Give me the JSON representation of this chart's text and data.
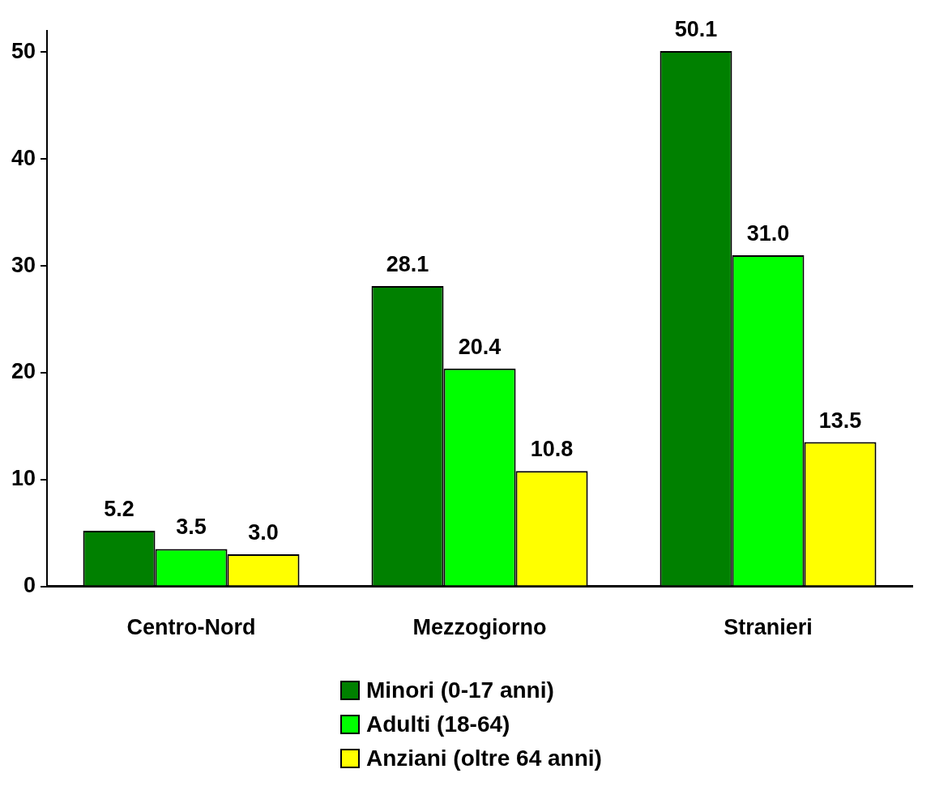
{
  "chart_data": {
    "type": "bar",
    "categories": [
      "Centro-Nord",
      "Mezzogiorno",
      "Stranieri"
    ],
    "series": [
      {
        "name": "Minori (0-17 anni)",
        "color": "#008000",
        "values": [
          5.2,
          28.1,
          50.1
        ]
      },
      {
        "name": "Adulti (18-64)",
        "color": "#00ff00",
        "values": [
          3.5,
          20.4,
          31.0
        ]
      },
      {
        "name": "Anziani (oltre 64 anni)",
        "color": "#ffff00",
        "values": [
          3.0,
          10.8,
          13.5
        ]
      }
    ],
    "value_labels": [
      [
        "5.2",
        "28.1",
        "50.1"
      ],
      [
        "3.5",
        "20.4",
        "31.0"
      ],
      [
        "3.0",
        "10.8",
        "13.5"
      ]
    ],
    "ylim": [
      0,
      52
    ],
    "yticks": [
      0,
      10,
      20,
      30,
      40,
      50
    ],
    "grid": false,
    "legend": "bottom"
  }
}
